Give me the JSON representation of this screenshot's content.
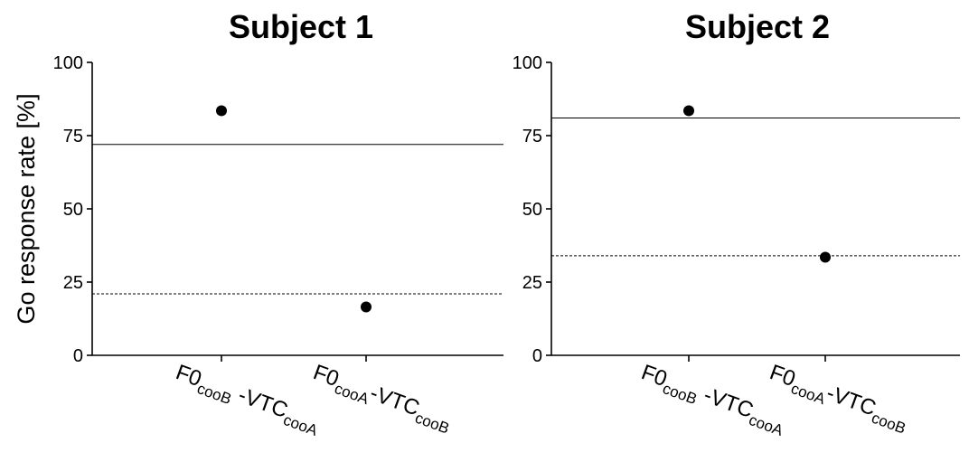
{
  "chart_data": [
    {
      "type": "scatter",
      "title": "Subject 1",
      "ylabel": "Go response rate [%]",
      "ylim": [
        0,
        100
      ],
      "yticks": [
        "0",
        "25",
        "50",
        "75",
        "100"
      ],
      "categories": [
        {
          "main": "F0",
          "sub1": "cooB",
          "mid": " -VTC",
          "sub2": "cooA"
        },
        {
          "main": "F0",
          "sub1": "cooA",
          "mid": "-VTC",
          "sub2": "cooB"
        }
      ],
      "values": [
        83.5,
        16.5
      ],
      "reference_lines": [
        {
          "style": "solid",
          "value": 72
        },
        {
          "style": "dashed",
          "value": 21
        }
      ],
      "grid": false
    },
    {
      "type": "scatter",
      "title": "Subject 2",
      "ylabel": "",
      "ylim": [
        0,
        100
      ],
      "yticks": [
        "0",
        "25",
        "50",
        "75",
        "100"
      ],
      "categories": [
        {
          "main": "F0",
          "sub1": "cooB",
          "mid": " -VTC",
          "sub2": "cooA"
        },
        {
          "main": "F0",
          "sub1": "cooA",
          "mid": "-VTC",
          "sub2": "cooB"
        }
      ],
      "values": [
        83.5,
        33.5
      ],
      "reference_lines": [
        {
          "style": "solid",
          "value": 81
        },
        {
          "style": "dashed",
          "value": 34
        }
      ],
      "grid": false
    }
  ]
}
